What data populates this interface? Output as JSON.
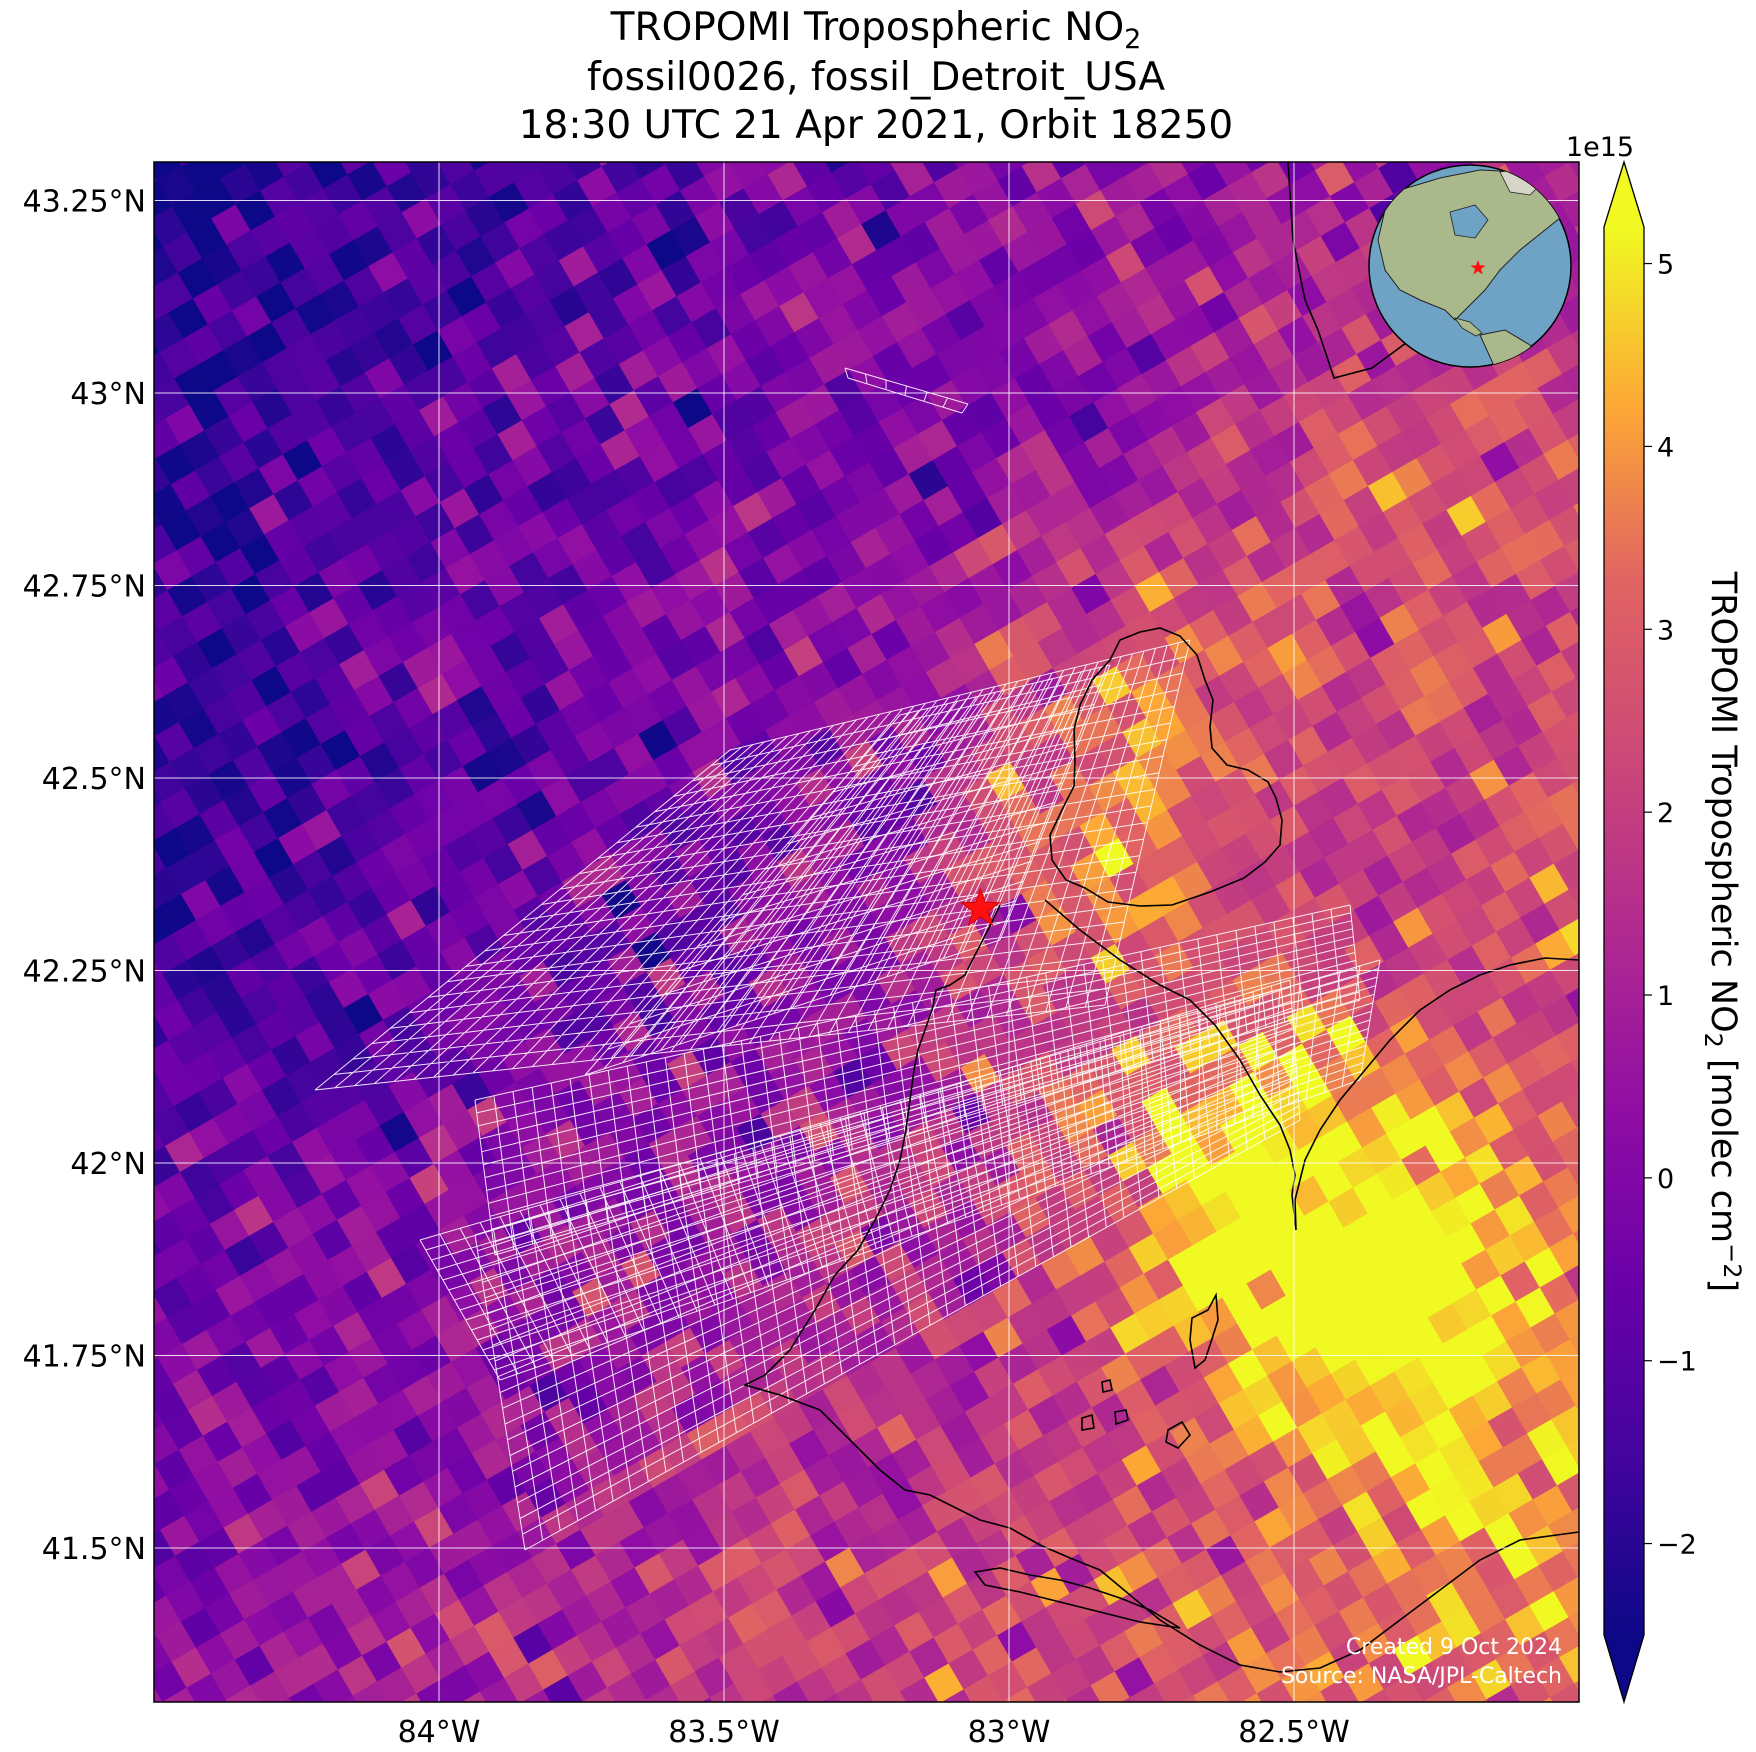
{
  "title": {
    "line1_prefix": "TROPOMI Tropospheric NO",
    "line1_sub": "2",
    "line2": "fossil0026, fossil_Detroit_USA",
    "line3": "18:30 UTC 21 Apr 2021, Orbit 18250"
  },
  "map": {
    "lon_range": [
      -84.5,
      -82.0
    ],
    "lat_range": [
      41.3,
      43.3
    ],
    "lon_ticks": [
      {
        "value": -84.0,
        "label": "84°W"
      },
      {
        "value": -83.5,
        "label": "83.5°W"
      },
      {
        "value": -83.0,
        "label": "83°W"
      },
      {
        "value": -82.5,
        "label": "82.5°W"
      }
    ],
    "lat_ticks": [
      {
        "value": 43.25,
        "label": "43.25°N"
      },
      {
        "value": 43.0,
        "label": "43°N"
      },
      {
        "value": 42.75,
        "label": "42.75°N"
      },
      {
        "value": 42.5,
        "label": "42.5°N"
      },
      {
        "value": 42.25,
        "label": "42.25°N"
      },
      {
        "value": 42.0,
        "label": "42°N"
      },
      {
        "value": 41.75,
        "label": "41.75°N"
      },
      {
        "value": 41.5,
        "label": "41.5°N"
      }
    ],
    "gridlines": true,
    "target_marker": {
      "name": "fossil_Detroit_USA",
      "lon": -83.05,
      "lat": 42.33,
      "color": "#ff0000",
      "icon": "red-star-icon"
    },
    "inset_globe": {
      "position": "top-right",
      "icon": "globe-icon",
      "ocean_color": "#6fa3c6",
      "land_color": "#a9b98c",
      "marker_color": "#ff0000"
    }
  },
  "colorbar": {
    "label_prefix": "TROPOMI Tropospheric NO",
    "label_sub": "2",
    "label_units": " [molec cm",
    "label_units_sup": "−2",
    "label_units_end": "]",
    "multiplier": "1e15",
    "range": [
      -2.5,
      5.2
    ],
    "ticks": [
      {
        "value": 5,
        "label": "5"
      },
      {
        "value": 4,
        "label": "4"
      },
      {
        "value": 3,
        "label": "3"
      },
      {
        "value": 2,
        "label": "2"
      },
      {
        "value": 1,
        "label": "1"
      },
      {
        "value": 0,
        "label": "0"
      },
      {
        "value": -1,
        "label": "−1"
      },
      {
        "value": -2,
        "label": "−2"
      }
    ],
    "colormap": "plasma",
    "extend": "both"
  },
  "footer": {
    "created": "Created 9 Oct 2024",
    "source": "Source: NASA/JPL-Caltech"
  }
}
